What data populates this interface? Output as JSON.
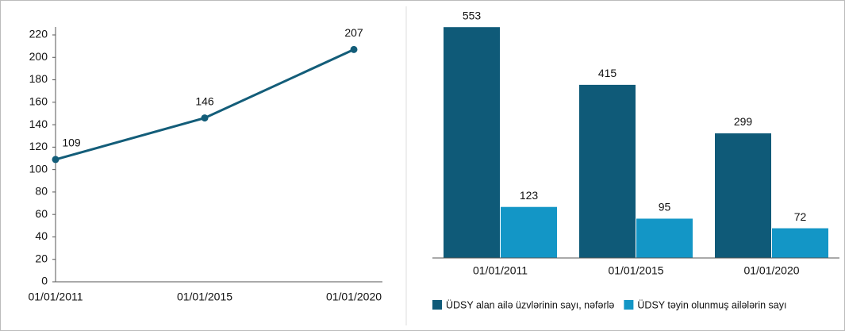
{
  "chart_data": [
    {
      "type": "line",
      "categories": [
        "01/01/2011",
        "01/01/2015",
        "01/01/2020"
      ],
      "values": [
        109,
        146,
        207
      ],
      "color": "#135d79",
      "ylim": [
        0,
        220
      ],
      "yticks": [
        0,
        20,
        40,
        60,
        80,
        100,
        120,
        140,
        160,
        180,
        200,
        220
      ],
      "grid": false
    },
    {
      "type": "bar",
      "categories": [
        "01/01/2011",
        "01/01/2015",
        "01/01/2020"
      ],
      "series": [
        {
          "name": "ÜDSY alan ailə üzvlərinin sayı, nəfərlə",
          "color": "#0f5a78",
          "values": [
            553,
            415,
            299
          ]
        },
        {
          "name": "ÜDSY təyin olunmuş ailələrin sayı",
          "color": "#1396c6",
          "values": [
            123,
            95,
            72
          ]
        }
      ],
      "ylim": [
        0,
        560
      ],
      "legend": "bottom"
    }
  ]
}
